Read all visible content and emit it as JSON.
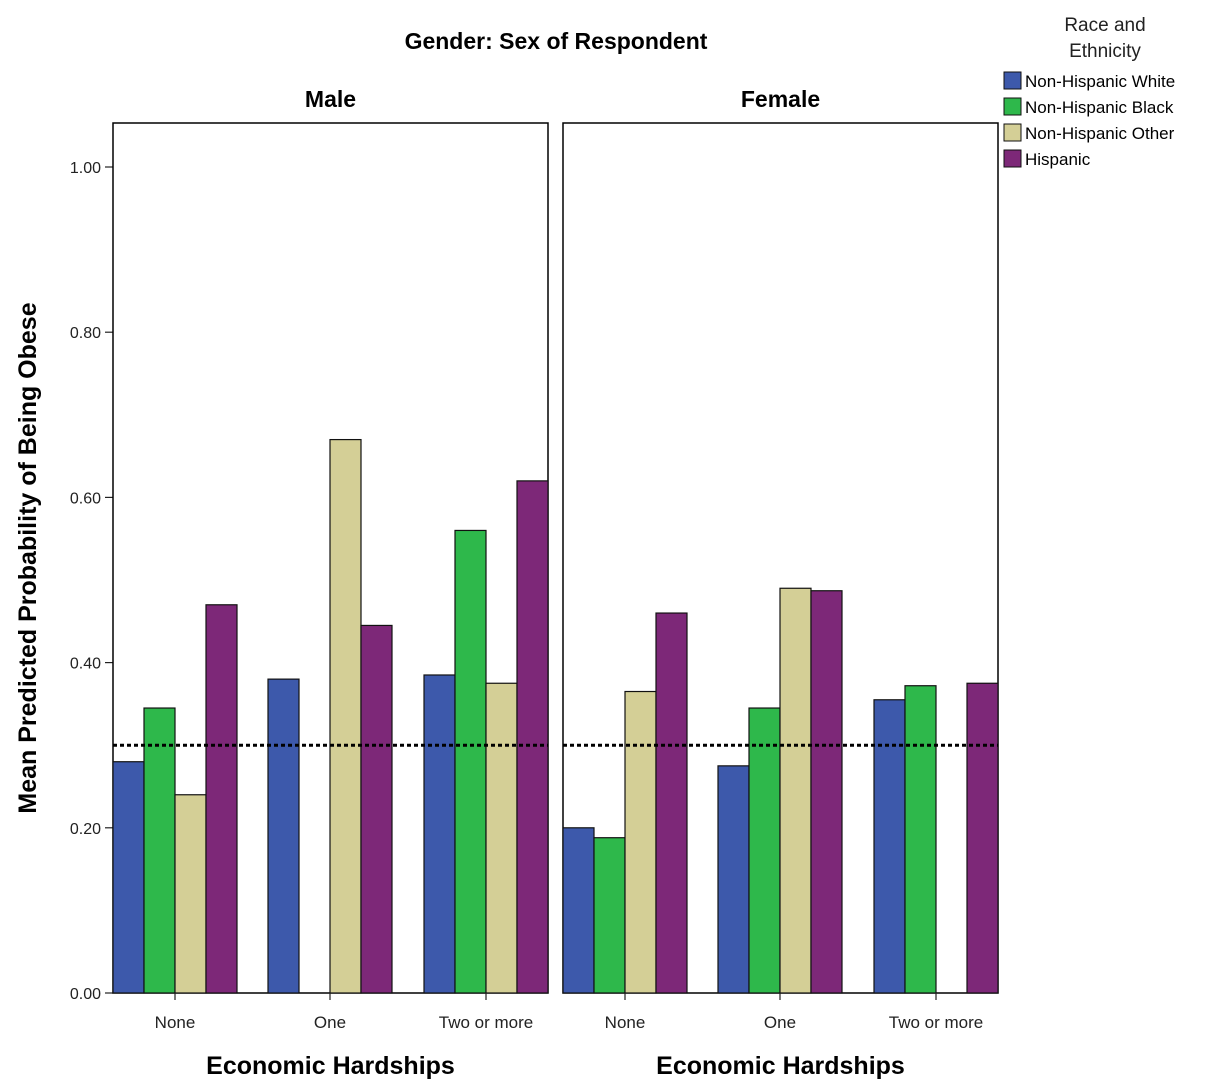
{
  "chart_data": {
    "type": "bar",
    "title": "Gender: Sex of Respondent",
    "panels": [
      {
        "name": "Male",
        "categories": [
          "None",
          "One",
          "Two or more"
        ],
        "series": [
          {
            "name": "Non-Hispanic White",
            "values": [
              0.28,
              0.38,
              0.385
            ]
          },
          {
            "name": "Non-Hispanic Black",
            "values": [
              0.345,
              null,
              0.56
            ]
          },
          {
            "name": "Non-Hispanic Other",
            "values": [
              0.24,
              0.67,
              0.375
            ]
          },
          {
            "name": "Hispanic",
            "values": [
              0.47,
              0.445,
              0.62
            ]
          }
        ]
      },
      {
        "name": "Female",
        "categories": [
          "None",
          "One",
          "Two or more"
        ],
        "series": [
          {
            "name": "Non-Hispanic White",
            "values": [
              0.2,
              0.275,
              0.355
            ]
          },
          {
            "name": "Non-Hispanic Black",
            "values": [
              0.188,
              0.345,
              0.372
            ]
          },
          {
            "name": "Non-Hispanic Other",
            "values": [
              0.365,
              0.49,
              null
            ]
          },
          {
            "name": "Hispanic",
            "values": [
              0.46,
              0.487,
              0.375
            ]
          }
        ]
      }
    ],
    "xlabel": "Economic Hardships",
    "ylabel": "Mean Predicted Probability of Being Obese",
    "ylim": [
      0,
      1.05
    ],
    "yticks": [
      "0.00",
      "0.20",
      "0.40",
      "0.60",
      "0.80",
      "1.00"
    ],
    "reference_line": 0.3,
    "legend": {
      "title": "Race and Ethnicity",
      "position": "top-right"
    },
    "colors": {
      "Non-Hispanic White": "#3d59ab",
      "Non-Hispanic Black": "#2eb84b",
      "Non-Hispanic Other": "#d4cf96",
      "Hispanic": "#7d2878"
    },
    "grid": false
  }
}
